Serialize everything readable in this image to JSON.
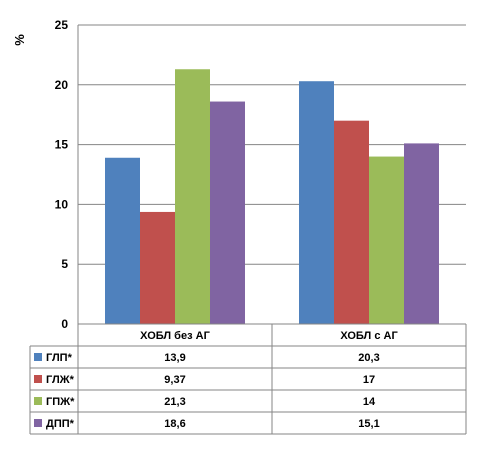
{
  "chart_data": {
    "type": "bar",
    "ylabel": "%",
    "ylim": [
      0,
      25
    ],
    "yticks": [
      "0",
      "5",
      "10",
      "15",
      "20",
      "25"
    ],
    "categories": [
      "ХОБЛ без АГ",
      "ХОБЛ с АГ"
    ],
    "grid": "horizontal",
    "legend": "data-table",
    "series": [
      {
        "name": "ГЛП*",
        "color": "#4f81bd",
        "values": [
          13.9,
          20.3
        ],
        "labels": [
          "13,9",
          "20,3"
        ]
      },
      {
        "name": "ГЛЖ*",
        "color": "#c0504d",
        "values": [
          9.37,
          17
        ],
        "labels": [
          "9,37",
          "17"
        ]
      },
      {
        "name": "ГПЖ*",
        "color": "#9bbb59",
        "values": [
          21.3,
          14
        ],
        "labels": [
          "21,3",
          "14"
        ]
      },
      {
        "name": "ДПП*",
        "color": "#8064a2",
        "values": [
          18.6,
          15.1
        ],
        "labels": [
          "18,6",
          "15,1"
        ]
      }
    ]
  }
}
